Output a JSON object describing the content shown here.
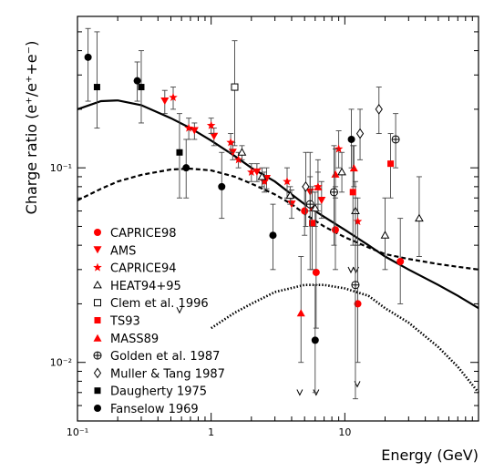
{
  "chart_data": {
    "type": "scatter",
    "title": "",
    "xlabel": "Energy (GeV)",
    "ylabel": "Charge ratio (e⁺/e⁺+e⁻)",
    "xscale": "log",
    "yscale": "log",
    "xlim": [
      0.1,
      100
    ],
    "ylim": [
      0.005,
      0.6
    ],
    "x_tick_labels": [
      {
        "value": 0.1,
        "label": "10⁻¹"
      },
      {
        "value": 1,
        "label": "1"
      },
      {
        "value": 10,
        "label": "10"
      }
    ],
    "y_tick_labels": [
      {
        "value": 0.01,
        "label": "10⁻²"
      },
      {
        "value": 0.1,
        "label": "10⁻¹"
      }
    ],
    "legend_placement": "bottom-left",
    "curves": [
      {
        "style": "solid",
        "points": [
          [
            0.1,
            0.2
          ],
          [
            0.15,
            0.22
          ],
          [
            0.2,
            0.222
          ],
          [
            0.3,
            0.21
          ],
          [
            0.5,
            0.18
          ],
          [
            0.7,
            0.16
          ],
          [
            1,
            0.138
          ],
          [
            1.5,
            0.115
          ],
          [
            2,
            0.1
          ],
          [
            3,
            0.085
          ],
          [
            4,
            0.073
          ],
          [
            5,
            0.065
          ],
          [
            7,
            0.056
          ],
          [
            10,
            0.048
          ],
          [
            15,
            0.04
          ],
          [
            20,
            0.035
          ],
          [
            30,
            0.03
          ],
          [
            50,
            0.025
          ],
          [
            70,
            0.022
          ],
          [
            100,
            0.019
          ]
        ]
      },
      {
        "style": "dashed",
        "points": [
          [
            0.1,
            0.068
          ],
          [
            0.15,
            0.078
          ],
          [
            0.2,
            0.085
          ],
          [
            0.3,
            0.092
          ],
          [
            0.5,
            0.098
          ],
          [
            0.7,
            0.099
          ],
          [
            1,
            0.097
          ],
          [
            1.5,
            0.09
          ],
          [
            2,
            0.083
          ],
          [
            3,
            0.073
          ],
          [
            4,
            0.065
          ],
          [
            5,
            0.058
          ],
          [
            7,
            0.05
          ],
          [
            10,
            0.044
          ],
          [
            15,
            0.039
          ],
          [
            20,
            0.036
          ],
          [
            30,
            0.034
          ],
          [
            50,
            0.032
          ],
          [
            70,
            0.031
          ],
          [
            100,
            0.03
          ]
        ]
      },
      {
        "style": "dotted",
        "points": [
          [
            1,
            0.015
          ],
          [
            1.5,
            0.018
          ],
          [
            2,
            0.02
          ],
          [
            3,
            0.023
          ],
          [
            5,
            0.025
          ],
          [
            7,
            0.025
          ],
          [
            10,
            0.024
          ],
          [
            15,
            0.022
          ],
          [
            20,
            0.019
          ],
          [
            30,
            0.016
          ],
          [
            50,
            0.012
          ],
          [
            70,
            0.0095
          ],
          [
            100,
            0.007
          ]
        ]
      }
    ],
    "series": [
      {
        "name": "CAPRICE98",
        "marker": "circle",
        "color": "#ff0000",
        "points": [
          [
            5.0,
            0.06,
            0.045,
            0.08
          ],
          [
            6.1,
            0.029,
            0.015,
            0.06
          ],
          [
            8.5,
            0.048,
            0.03,
            0.08
          ],
          [
            12.5,
            0.02,
            0.01,
            0.04
          ],
          [
            26,
            0.033,
            0.02,
            0.055
          ]
        ]
      },
      {
        "name": "AMS",
        "marker": "triangle-down",
        "color": "#ff0000",
        "points": [
          [
            0.45,
            0.22,
            0.19,
            0.25
          ],
          [
            0.75,
            0.155,
            0.14,
            0.17
          ],
          [
            1.05,
            0.145,
            0.13,
            0.16
          ],
          [
            1.45,
            0.12,
            0.11,
            0.135
          ],
          [
            2.2,
            0.095,
            0.085,
            0.105
          ],
          [
            2.6,
            0.088,
            0.078,
            0.1
          ],
          [
            4.0,
            0.065,
            0.055,
            0.077
          ],
          [
            5.5,
            0.075,
            0.06,
            0.09
          ],
          [
            6.7,
            0.068,
            0.055,
            0.085
          ]
        ]
      },
      {
        "name": "CAPRICE94",
        "marker": "star",
        "color": "#ff0000",
        "points": [
          [
            0.52,
            0.23,
            0.2,
            0.26
          ],
          [
            0.68,
            0.16,
            0.14,
            0.18
          ],
          [
            1.0,
            0.165,
            0.15,
            0.18
          ],
          [
            1.4,
            0.135,
            0.12,
            0.15
          ],
          [
            1.6,
            0.11,
            0.1,
            0.12
          ],
          [
            2.0,
            0.095,
            0.085,
            0.105
          ],
          [
            2.5,
            0.085,
            0.075,
            0.095
          ],
          [
            3.7,
            0.085,
            0.07,
            0.1
          ],
          [
            5.7,
            0.062,
            0.05,
            0.075
          ],
          [
            6.3,
            0.08,
            0.065,
            0.095
          ],
          [
            9.0,
            0.125,
            0.1,
            0.155
          ],
          [
            12.5,
            0.053,
            0.04,
            0.07
          ]
        ]
      },
      {
        "name": "HEAT94+95",
        "marker": "triangle-open",
        "color": "#000000",
        "points": [
          [
            1.7,
            0.12,
            0.11,
            0.13
          ],
          [
            2.4,
            0.09,
            0.08,
            0.1
          ],
          [
            3.9,
            0.072,
            0.065,
            0.08
          ],
          [
            6.0,
            0.062,
            0.05,
            0.075
          ],
          [
            9.5,
            0.095,
            0.075,
            0.12
          ],
          [
            12,
            0.06,
            0.04,
            0.085
          ],
          [
            20,
            0.045,
            0.03,
            0.07
          ],
          [
            36,
            0.055,
            0.035,
            0.09
          ]
        ]
      },
      {
        "name": "Clem et al. 1996",
        "marker": "square-open",
        "color": "#000000",
        "points": [
          [
            1.5,
            0.26,
            0.13,
            0.45
          ]
        ]
      },
      {
        "name": "TS93",
        "marker": "square",
        "color": "#ff0000",
        "points": [
          [
            5.7,
            0.052,
            0.03,
            0.08
          ],
          [
            11.5,
            0.075,
            0.04,
            0.13
          ],
          [
            22,
            0.105,
            0.07,
            0.15
          ]
        ]
      },
      {
        "name": "MASS89",
        "marker": "triangle-up",
        "color": "#ff0000",
        "points": [
          [
            4.7,
            0.018,
            0.01,
            0.035
          ],
          [
            6.3,
            0.08,
            0.06,
            0.11
          ],
          [
            8.5,
            0.093,
            0.07,
            0.125
          ],
          [
            11.7,
            0.1,
            0.08,
            0.13
          ]
        ]
      },
      {
        "name": "Golden et al. 1987",
        "marker": "cross-circle",
        "color": "#000000",
        "points": [
          [
            5.5,
            0.065,
            0.03,
            0.12
          ],
          [
            8.3,
            0.075,
            0.04,
            0.13
          ],
          [
            12,
            0.025,
            0.0065,
            0.07
          ],
          [
            24,
            0.14,
            0.1,
            0.19
          ]
        ]
      },
      {
        "name": "Muller & Tang 1987",
        "marker": "diamond-open",
        "color": "#000000",
        "points": [
          [
            5.1,
            0.08,
            0.05,
            0.12
          ],
          [
            13,
            0.15,
            0.11,
            0.2
          ],
          [
            18,
            0.2,
            0.15,
            0.26
          ]
        ]
      },
      {
        "name": "Daugherty 1975",
        "marker": "square",
        "color": "#000000",
        "points": [
          [
            0.14,
            0.26,
            0.16,
            0.5
          ],
          [
            0.3,
            0.26,
            0.17,
            0.4
          ],
          [
            0.58,
            0.12,
            0.07,
            0.19
          ]
        ]
      },
      {
        "name": "Fanselow 1969",
        "marker": "circle",
        "color": "#000000",
        "points": [
          [
            0.12,
            0.37,
            0.22,
            0.52
          ],
          [
            0.28,
            0.28,
            0.22,
            0.35
          ],
          [
            0.65,
            0.1,
            0.07,
            0.14
          ],
          [
            1.2,
            0.08,
            0.055,
            0.12
          ],
          [
            2.9,
            0.045,
            0.03,
            0.065
          ],
          [
            6.0,
            0.013,
            0.007,
            0.025
          ],
          [
            11.2,
            0.14,
            0.1,
            0.2
          ]
        ]
      }
    ],
    "upper_limits": [
      [
        0.58,
        0.018
      ],
      [
        4.6,
        0.0068
      ],
      [
        6.1,
        0.0068
      ],
      [
        11.1,
        0.029
      ],
      [
        12.1,
        0.029
      ],
      [
        12.4,
        0.0075
      ]
    ],
    "legend": [
      "CAPRICE98",
      "AMS",
      "CAPRICE94",
      "HEAT94+95",
      "Clem et al. 1996",
      "TS93",
      "MASS89",
      "Golden et al. 1987",
      "Muller & Tang 1987",
      "Daugherty 1975",
      "Fanselow 1969"
    ]
  }
}
